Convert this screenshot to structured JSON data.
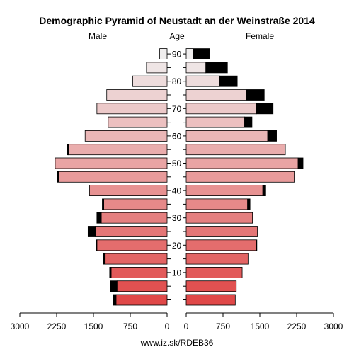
{
  "chart_data": {
    "type": "bar",
    "title": "Demographic Pyramid of Neustadt an der Weinstraße 2014",
    "left_label": "Male",
    "center_label": "Age",
    "right_label": "Female",
    "footer": "www.iz.sk/RDEB36",
    "x_ticks": [
      "3000",
      "2250",
      "1500",
      "750",
      "0",
      "0",
      "750",
      "1500",
      "2250",
      "3000"
    ],
    "x_max": 3000,
    "age_ticks": [
      "10",
      "20",
      "30",
      "40",
      "50",
      "60",
      "70",
      "80",
      "90"
    ],
    "age_groups": [
      "0-4",
      "5-9",
      "10-14",
      "15-19",
      "20-24",
      "25-29",
      "30-34",
      "35-39",
      "40-44",
      "45-49",
      "50-54",
      "55-59",
      "60-64",
      "65-69",
      "70-74",
      "75-79",
      "80-84",
      "85-89",
      "90+"
    ],
    "male_base": [
      1040,
      1020,
      1140,
      1260,
      1430,
      1460,
      1340,
      1290,
      1580,
      2200,
      2280,
      2010,
      1670,
      1200,
      1430,
      1230,
      700,
      420,
      150
    ],
    "male_excess": [
      60,
      140,
      30,
      40,
      20,
      150,
      90,
      30,
      0,
      30,
      0,
      20,
      0,
      0,
      0,
      0,
      0,
      0,
      0
    ],
    "female_base": [
      1000,
      1020,
      1140,
      1260,
      1420,
      1450,
      1350,
      1250,
      1560,
      2200,
      2280,
      2020,
      1660,
      1190,
      1430,
      1220,
      680,
      400,
      140
    ],
    "female_excess": [
      0,
      0,
      0,
      0,
      20,
      0,
      0,
      50,
      60,
      0,
      100,
      0,
      180,
      150,
      340,
      370,
      360,
      440,
      330
    ],
    "colors": {
      "excess": "#000000",
      "stroke": "#000000",
      "male_top": "#f0eeee",
      "male_bottom": "#e04848",
      "female_top": "#f0eeee",
      "female_bottom": "#e04848"
    }
  }
}
